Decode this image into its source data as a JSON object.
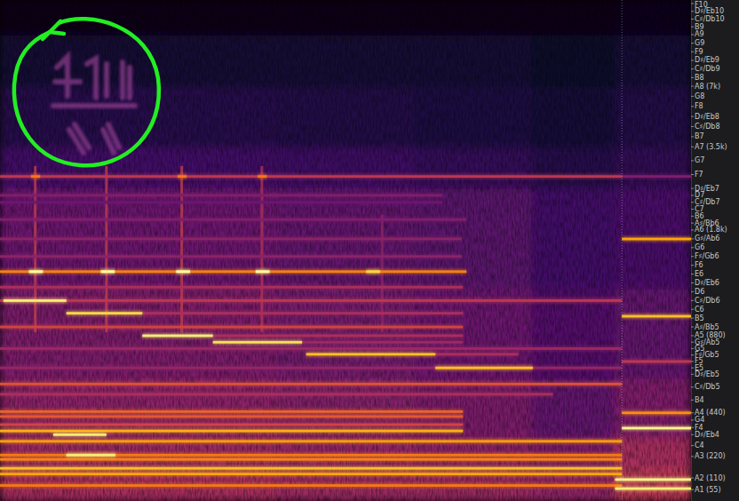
{
  "chart_data": {
    "type": "spectrogram",
    "log": "y",
    "grid": false,
    "tick_labels": "y",
    "xlim": [
      0,
      100
    ],
    "ylim": [
      50,
      24000
    ],
    "zlim": [
      0,
      1
    ],
    "yticks": [
      {
        "value": 22350.6,
        "label": "F10"
      },
      {
        "value": 19912.1,
        "label": "D♯/Eb10"
      },
      {
        "value": 17739.7,
        "label": "C♯/Db10"
      },
      {
        "value": 15804.3,
        "label": "B9"
      },
      {
        "value": 14080,
        "label": "A9"
      },
      {
        "value": 12543.9,
        "label": "G9"
      },
      {
        "value": 11175.3,
        "label": "F9"
      },
      {
        "value": 9956.1,
        "label": "D♯/Eb9"
      },
      {
        "value": 8869.8,
        "label": "C♯/Db9"
      },
      {
        "value": 7902.1,
        "label": "B8"
      },
      {
        "value": 7040,
        "label": "A8 (7k)"
      },
      {
        "value": 6271.9,
        "label": "G8"
      },
      {
        "value": 5587.7,
        "label": "F8"
      },
      {
        "value": 4978.0,
        "label": "D♯/Eb8"
      },
      {
        "value": 4434.9,
        "label": "C♯/Db8"
      },
      {
        "value": 3951.1,
        "label": "B7"
      },
      {
        "value": 3520,
        "label": "A7 (3.5k)"
      },
      {
        "value": 3136.0,
        "label": "G7"
      },
      {
        "value": 2793.8,
        "label": "F7"
      },
      {
        "value": 2489.0,
        "label": "D♯/Eb7"
      },
      {
        "value": 2349.3,
        "label": "D7"
      },
      {
        "value": 2217.5,
        "label": "C♯/Db7"
      },
      {
        "value": 2093.0,
        "label": "C7"
      },
      {
        "value": 1975.5,
        "label": "B6"
      },
      {
        "value": 1864.7,
        "label": "A♯/Bb6"
      },
      {
        "value": 1760,
        "label": "A6 (1.8k)"
      },
      {
        "value": 1661.2,
        "label": "G♯/Ab6"
      },
      {
        "value": 1568.0,
        "label": "G6"
      },
      {
        "value": 1480.0,
        "label": "F♯/Gb6"
      },
      {
        "value": 1396.9,
        "label": "F6"
      },
      {
        "value": 1318.5,
        "label": "E6"
      },
      {
        "value": 1244.5,
        "label": "D♯/Eb6"
      },
      {
        "value": 1174.7,
        "label": "D6"
      },
      {
        "value": 1108.7,
        "label": "C♯/Db6"
      },
      {
        "value": 1046.5,
        "label": "C6"
      },
      {
        "value": 987.8,
        "label": "B5"
      },
      {
        "value": 932.3,
        "label": "A♯/Bb5"
      },
      {
        "value": 880,
        "label": "A5 (880)"
      },
      {
        "value": 830.6,
        "label": "G♯/Ab5"
      },
      {
        "value": 784.0,
        "label": "G5"
      },
      {
        "value": 740.0,
        "label": "F♯/Gb5"
      },
      {
        "value": 698.5,
        "label": "F5"
      },
      {
        "value": 659.3,
        "label": "E5"
      },
      {
        "value": 622.3,
        "label": "D♯/Eb5"
      },
      {
        "value": 554.4,
        "label": "C♯/Db5"
      },
      {
        "value": 493.9,
        "label": "B4"
      },
      {
        "value": 440,
        "label": "A4 (440)"
      },
      {
        "value": 392.0,
        "label": "G4"
      },
      {
        "value": 349.2,
        "label": "F4"
      },
      {
        "value": 311.1,
        "label": "D♯/Eb4"
      },
      {
        "value": 261.6,
        "label": "C4"
      },
      {
        "value": 220,
        "label": "A3 (220)"
      },
      {
        "value": 110,
        "label": "A2 (110)"
      },
      {
        "value": 55,
        "label": "A1 (55)"
      }
    ],
    "cell_x_edges": [
      0,
      20,
      40,
      60,
      77,
      89,
      100
    ],
    "cell_y_edges": [
      50,
      150,
      300,
      600,
      1200,
      2500,
      3500,
      7000,
      14000,
      24000
    ],
    "cells": [
      [
        0.45,
        0.45,
        0.42,
        0.42,
        0.4,
        0.5
      ],
      [
        0.42,
        0.42,
        0.4,
        0.38,
        0.35,
        0.45
      ],
      [
        0.38,
        0.38,
        0.36,
        0.34,
        0.28,
        0.35
      ],
      [
        0.34,
        0.34,
        0.32,
        0.3,
        0.24,
        0.28
      ],
      [
        0.3,
        0.3,
        0.28,
        0.26,
        0.2,
        0.22
      ],
      [
        0.2,
        0.2,
        0.19,
        0.17,
        0.14,
        0.16
      ],
      [
        0.14,
        0.14,
        0.13,
        0.12,
        0.1,
        0.13
      ],
      [
        0.09,
        0.09,
        0.09,
        0.09,
        0.07,
        0.09
      ],
      [
        0.04,
        0.04,
        0.04,
        0.04,
        0.04,
        0.05
      ]
    ],
    "tones": [
      {
        "start": 0,
        "end": 67.5,
        "frequency": 1340,
        "level": 0.72
      },
      {
        "start": 4.2,
        "end": 6.2,
        "frequency": 1340,
        "level": 1.0
      },
      {
        "start": 14.6,
        "end": 16.6,
        "frequency": 1340,
        "level": 1.0
      },
      {
        "start": 25.5,
        "end": 27.5,
        "frequency": 1340,
        "level": 1.0
      },
      {
        "start": 37,
        "end": 39,
        "frequency": 1340,
        "level": 1.0
      },
      {
        "start": 53,
        "end": 55,
        "frequency": 1340,
        "level": 0.9
      },
      {
        "start": 0,
        "end": 90,
        "frequency": 2750,
        "level": 0.5
      },
      {
        "start": 4.5,
        "end": 5.8,
        "frequency": 2750,
        "level": 0.7
      },
      {
        "start": 25.7,
        "end": 27,
        "frequency": 2750,
        "level": 0.7
      },
      {
        "start": 37.3,
        "end": 38.6,
        "frequency": 2750,
        "level": 0.7
      },
      {
        "start": 0,
        "end": 64,
        "frequency": 2350,
        "level": 0.35
      },
      {
        "start": 0,
        "end": 64,
        "frequency": 2217,
        "level": 0.3
      },
      {
        "start": 0,
        "end": 67.5,
        "frequency": 1920,
        "level": 0.35
      },
      {
        "start": 0,
        "end": 66.8,
        "frequency": 1661,
        "level": 0.38
      },
      {
        "start": 0,
        "end": 66.8,
        "frequency": 1480,
        "level": 0.38
      },
      {
        "start": 0,
        "end": 67,
        "frequency": 1210,
        "level": 0.45
      },
      {
        "start": 0,
        "end": 90,
        "frequency": 1108,
        "level": 0.5
      },
      {
        "start": 0.5,
        "end": 9.6,
        "frequency": 1108,
        "level": 0.95
      },
      {
        "start": 9.6,
        "end": 20.6,
        "frequency": 1020,
        "level": 0.9
      },
      {
        "start": 20.6,
        "end": 67,
        "frequency": 1020,
        "level": 0.45
      },
      {
        "start": 0,
        "end": 67,
        "frequency": 932,
        "level": 0.55
      },
      {
        "start": 20.6,
        "end": 30.8,
        "frequency": 880,
        "level": 0.95
      },
      {
        "start": 30.8,
        "end": 67,
        "frequency": 880,
        "level": 0.45
      },
      {
        "start": 30.8,
        "end": 43.7,
        "frequency": 830,
        "level": 0.92
      },
      {
        "start": 43.7,
        "end": 67,
        "frequency": 830,
        "level": 0.42
      },
      {
        "start": 0,
        "end": 90,
        "frequency": 784,
        "level": 0.42
      },
      {
        "start": 44.3,
        "end": 63,
        "frequency": 745,
        "level": 0.85
      },
      {
        "start": 63,
        "end": 75,
        "frequency": 745,
        "level": 0.45
      },
      {
        "start": 63,
        "end": 77.1,
        "frequency": 659,
        "level": 0.85
      },
      {
        "start": 0,
        "end": 90,
        "frequency": 659,
        "level": 0.4
      },
      {
        "start": 0,
        "end": 90,
        "frequency": 570,
        "level": 0.6
      },
      {
        "start": 0,
        "end": 80,
        "frequency": 520,
        "level": 0.45
      },
      {
        "start": 0,
        "end": 67,
        "frequency": 445,
        "level": 0.65
      },
      {
        "start": 0,
        "end": 67,
        "frequency": 415,
        "level": 0.62
      },
      {
        "start": 0,
        "end": 67,
        "frequency": 365,
        "level": 0.55
      },
      {
        "start": 0,
        "end": 67,
        "frequency": 330,
        "level": 0.82
      },
      {
        "start": 7.7,
        "end": 15.4,
        "frequency": 311,
        "level": 0.95
      },
      {
        "start": 0,
        "end": 90,
        "frequency": 280,
        "level": 0.78
      },
      {
        "start": 0,
        "end": 90,
        "frequency": 225,
        "level": 0.7
      },
      {
        "start": 9.6,
        "end": 16.7,
        "frequency": 225,
        "level": 0.95
      },
      {
        "start": 0,
        "end": 90,
        "frequency": 200,
        "level": 0.72
      },
      {
        "start": 0,
        "end": 90,
        "frequency": 150,
        "level": 0.85
      },
      {
        "start": 0,
        "end": 90,
        "frequency": 125,
        "level": 0.8
      },
      {
        "start": 0,
        "end": 90,
        "frequency": 70,
        "level": 0.7
      },
      {
        "start": 90,
        "end": 100,
        "frequency": 345,
        "level": 0.97
      },
      {
        "start": 90,
        "end": 100,
        "frequency": 1000,
        "level": 0.85
      },
      {
        "start": 90,
        "end": 100,
        "frequency": 1660,
        "level": 0.8
      },
      {
        "start": 90,
        "end": 100,
        "frequency": 698,
        "level": 0.5
      },
      {
        "start": 89,
        "end": 100,
        "frequency": 100,
        "level": 0.97
      },
      {
        "start": 89,
        "end": 100,
        "frequency": 58,
        "level": 0.95
      },
      {
        "start": 90,
        "end": 100,
        "frequency": 440,
        "level": 0.75
      },
      {
        "start": 90,
        "end": 100,
        "frequency": 2750,
        "level": 0.35
      }
    ],
    "transients": [
      {
        "time": 5.1,
        "low": 900,
        "high": 3000,
        "level": 0.55
      },
      {
        "time": 15.4,
        "low": 900,
        "high": 3000,
        "level": 0.55
      },
      {
        "time": 26.3,
        "low": 900,
        "high": 3000,
        "level": 0.55
      },
      {
        "time": 37.9,
        "low": 900,
        "high": 3000,
        "level": 0.5
      },
      {
        "time": 55.3,
        "low": 900,
        "high": 2000,
        "level": 0.4
      }
    ]
  }
}
